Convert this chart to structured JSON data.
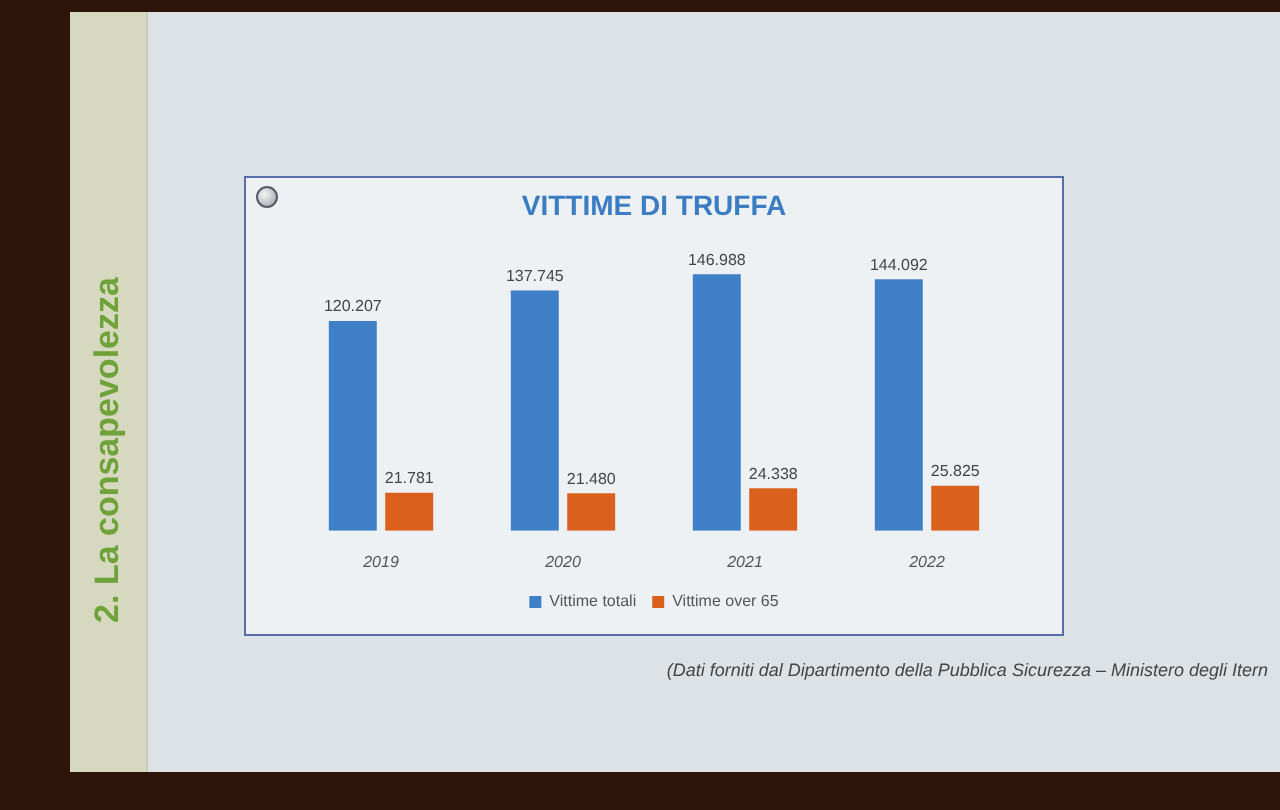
{
  "chart_data": {
    "type": "bar",
    "title": "VITTIME DI TRUFFA",
    "categories": [
      "2019",
      "2020",
      "2021",
      "2022"
    ],
    "series": [
      {
        "name": "Vittime totali",
        "color": "#3f7fc8",
        "values": [
          120207,
          137745,
          146988,
          144092
        ],
        "value_labels": [
          "120.207",
          "137.745",
          "146.988",
          "144.092"
        ]
      },
      {
        "name": "Vittime over 65",
        "color": "#d9611c",
        "values": [
          21781,
          21480,
          24338,
          25825
        ],
        "value_labels": [
          "21.781",
          "21.480",
          "24.338",
          "25.825"
        ]
      }
    ],
    "legend": "bottom",
    "annotations": [
      "2. La consapevolezza",
      "(Dati forniti dal Dipartimento della Pubblica Sicurezza – Ministero degli Itern"
    ]
  }
}
